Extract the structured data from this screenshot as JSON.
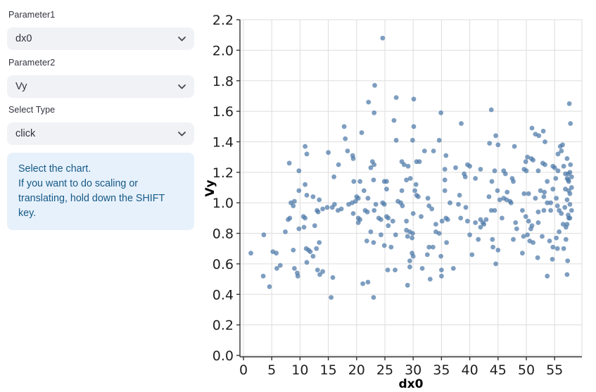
{
  "sidebar": {
    "param1": {
      "label": "Parameter1",
      "value": "dx0"
    },
    "param2": {
      "label": "Parameter2",
      "value": "Vy"
    },
    "select_type": {
      "label": "Select Type",
      "value": "click"
    },
    "info": {
      "line1": "Select the chart.",
      "line2": "If you want to do scaling or translating, hold down the SHIFT key."
    }
  },
  "colors": {
    "widget_bg": "#f0f2f6",
    "info_bg": "#e7f1fb",
    "info_text": "#155987",
    "point": "#4c78a8",
    "grid": "#dddddd",
    "axis": "#333333"
  },
  "chart_data": {
    "type": "scatter",
    "title": "",
    "xlabel": "dx0",
    "ylabel": "Vy",
    "xlim": [
      0,
      59.8
    ],
    "ylim": [
      0,
      2.2
    ],
    "x_ticks": [
      0,
      5,
      10,
      15,
      20,
      25,
      30,
      35,
      40,
      45,
      50,
      55
    ],
    "y_ticks": [
      0.0,
      0.2,
      0.4,
      0.6,
      0.8,
      1.0,
      1.2,
      1.4,
      1.6,
      1.8,
      2.0,
      2.2
    ],
    "grid": true,
    "legend": "none",
    "point_opacity": 0.72,
    "points": [
      [
        17.8,
        1.5
      ],
      [
        18.0,
        1.42
      ],
      [
        10.9,
        1.37
      ],
      [
        11.2,
        1.32
      ],
      [
        15.0,
        1.33
      ],
      [
        18.4,
        1.34
      ],
      [
        19.3,
        1.31
      ],
      [
        19.4,
        1.29
      ],
      [
        8.1,
        1.26
      ],
      [
        16.8,
        1.25
      ],
      [
        9.8,
        1.21
      ],
      [
        16.0,
        1.17
      ],
      [
        19.5,
        1.14
      ],
      [
        10.9,
        1.12
      ],
      [
        24.6,
        2.08
      ],
      [
        23.2,
        1.77
      ],
      [
        27.0,
        1.69
      ],
      [
        30.1,
        1.68
      ],
      [
        22.1,
        1.66
      ],
      [
        23.1,
        1.59
      ],
      [
        34.9,
        1.59
      ],
      [
        26.6,
        1.54
      ],
      [
        38.5,
        1.52
      ],
      [
        30.1,
        1.5
      ],
      [
        20.9,
        1.46
      ],
      [
        27.0,
        1.41
      ],
      [
        29.9,
        1.41
      ],
      [
        34.6,
        1.41
      ],
      [
        32.0,
        1.34
      ],
      [
        33.6,
        1.34
      ],
      [
        35.8,
        1.31
      ],
      [
        22.8,
        1.27
      ],
      [
        23.1,
        1.25
      ],
      [
        22.5,
        1.23
      ],
      [
        28.0,
        1.27
      ],
      [
        28.4,
        1.25
      ],
      [
        29.1,
        1.24
      ],
      [
        30.6,
        1.27
      ],
      [
        31.1,
        1.27
      ],
      [
        35.6,
        1.22
      ],
      [
        37.5,
        1.23
      ],
      [
        39.6,
        1.25
      ],
      [
        35.6,
        1.15
      ],
      [
        39.0,
        1.19
      ],
      [
        39.2,
        1.17
      ],
      [
        20.6,
        1.14
      ],
      [
        23.0,
        1.15
      ],
      [
        24.9,
        1.14
      ],
      [
        25.3,
        1.14
      ],
      [
        28.8,
        1.15
      ],
      [
        29.5,
        1.16
      ],
      [
        30.5,
        1.12
      ],
      [
        43.8,
        1.61
      ],
      [
        57.6,
        1.65
      ],
      [
        57.8,
        1.52
      ],
      [
        44.6,
        1.44
      ],
      [
        51.0,
        1.49
      ],
      [
        51.6,
        1.45
      ],
      [
        52.2,
        1.44
      ],
      [
        53.0,
        1.47
      ],
      [
        43.5,
        1.39
      ],
      [
        45.0,
        1.38
      ],
      [
        47.9,
        1.37
      ],
      [
        53.3,
        1.4
      ],
      [
        56.0,
        1.37
      ],
      [
        56.4,
        1.38
      ],
      [
        56.2,
        1.34
      ],
      [
        55.6,
        1.32
      ],
      [
        50.2,
        1.3
      ],
      [
        50.9,
        1.29
      ],
      [
        51.2,
        1.28
      ],
      [
        49.9,
        1.27
      ],
      [
        57.2,
        1.29
      ],
      [
        40.0,
        1.24
      ],
      [
        41.9,
        1.22
      ],
      [
        52.9,
        1.26
      ],
      [
        53.3,
        1.25
      ],
      [
        54.7,
        1.24
      ],
      [
        56.6,
        1.24
      ],
      [
        57.8,
        1.25
      ],
      [
        44.4,
        1.21
      ],
      [
        46.0,
        1.21
      ],
      [
        46.3,
        1.19
      ],
      [
        49.6,
        1.22
      ],
      [
        50.0,
        1.21
      ],
      [
        52.1,
        1.21
      ],
      [
        55.6,
        1.21
      ],
      [
        56.9,
        1.19
      ],
      [
        57.4,
        1.19
      ],
      [
        57.2,
        1.16
      ],
      [
        57.4,
        1.15
      ],
      [
        47.5,
        1.16
      ],
      [
        47.7,
        1.14
      ],
      [
        41.0,
        1.16
      ],
      [
        43.9,
        1.14
      ],
      [
        53.7,
        1.14
      ],
      [
        55.0,
        1.23
      ],
      [
        55.2,
        1.16
      ],
      [
        57.7,
        1.2
      ],
      [
        58.0,
        1.17
      ],
      [
        57.5,
        1.14
      ],
      [
        58.0,
        1.1
      ],
      [
        57.7,
        1.06
      ],
      [
        57.2,
        1.02
      ],
      [
        57.7,
        0.99
      ],
      [
        58.0,
        0.95
      ],
      [
        57.5,
        0.9
      ],
      [
        56.5,
        0.86
      ],
      [
        55.8,
        0.95
      ],
      [
        55.8,
        0.81
      ],
      [
        9.8,
        1.08
      ],
      [
        11.2,
        1.05
      ],
      [
        12.3,
        1.04
      ],
      [
        13.4,
        1.02
      ],
      [
        8.4,
        1.0
      ],
      [
        9.0,
        1.01
      ],
      [
        8.8,
        0.98
      ],
      [
        10.6,
        0.91
      ],
      [
        10.9,
        0.9
      ],
      [
        7.9,
        0.89
      ],
      [
        8.2,
        0.9
      ],
      [
        14.8,
        0.97
      ],
      [
        14.0,
        0.96
      ],
      [
        13.0,
        0.95
      ],
      [
        13.2,
        0.94
      ],
      [
        15.7,
        0.97
      ],
      [
        16.1,
        0.99
      ],
      [
        16.7,
        0.95
      ],
      [
        17.3,
        0.96
      ],
      [
        18.6,
        0.99
      ],
      [
        19.2,
        1.0
      ],
      [
        19.4,
        0.93
      ],
      [
        19.8,
        1.01
      ],
      [
        20.0,
        1.04
      ],
      [
        10.7,
        0.84
      ],
      [
        12.6,
        0.85
      ],
      [
        9.8,
        0.83
      ],
      [
        7.4,
        0.81
      ],
      [
        3.6,
        0.79
      ],
      [
        1.3,
        0.67
      ],
      [
        5.2,
        0.68
      ],
      [
        5.8,
        0.67
      ],
      [
        8.8,
        0.69
      ],
      [
        11.1,
        0.7
      ],
      [
        11.5,
        0.69
      ],
      [
        11.8,
        0.68
      ],
      [
        12.3,
        0.65
      ],
      [
        12.9,
        0.7
      ],
      [
        13.4,
        0.74
      ],
      [
        11.2,
        0.61
      ],
      [
        6.5,
        0.59
      ],
      [
        5.9,
        0.57
      ],
      [
        9.0,
        0.57
      ],
      [
        9.5,
        0.54
      ],
      [
        3.5,
        0.52
      ],
      [
        9.6,
        0.52
      ],
      [
        13.1,
        0.56
      ],
      [
        13.5,
        0.53
      ],
      [
        14.0,
        0.55
      ],
      [
        4.6,
        0.45
      ],
      [
        15.5,
        0.38
      ],
      [
        15.8,
        0.51
      ],
      [
        21.3,
        1.08
      ],
      [
        25.3,
        1.09
      ],
      [
        28.0,
        1.08
      ],
      [
        30.3,
        1.08
      ],
      [
        30.6,
        1.05
      ],
      [
        30.9,
        1.04
      ],
      [
        32.6,
        1.03
      ],
      [
        35.6,
        1.08
      ],
      [
        38.2,
        1.05
      ],
      [
        20.3,
        1.03
      ],
      [
        22.0,
        1.03
      ],
      [
        23.4,
        0.99
      ],
      [
        23.1,
        0.95
      ],
      [
        24.6,
        1.0
      ],
      [
        24.9,
        0.99
      ],
      [
        27.3,
        1.01
      ],
      [
        27.8,
        1.0
      ],
      [
        28.1,
        0.98
      ],
      [
        32.8,
        0.98
      ],
      [
        33.3,
        0.96
      ],
      [
        36.5,
        1.0
      ],
      [
        38.0,
        0.99
      ],
      [
        39.3,
        0.97
      ],
      [
        21.5,
        0.95
      ],
      [
        21.9,
        0.94
      ],
      [
        23.9,
        0.9
      ],
      [
        24.3,
        0.89
      ],
      [
        25.3,
        0.91
      ],
      [
        25.6,
        0.9
      ],
      [
        25.6,
        0.85
      ],
      [
        26.4,
        0.88
      ],
      [
        30.0,
        0.93
      ],
      [
        31.4,
        0.91
      ],
      [
        20.3,
        0.9
      ],
      [
        20.6,
        0.89
      ],
      [
        20.3,
        0.87
      ],
      [
        28.8,
        0.88
      ],
      [
        34.0,
        0.86
      ],
      [
        35.1,
        0.88
      ],
      [
        35.8,
        0.9
      ],
      [
        36.1,
        0.89
      ],
      [
        38.4,
        0.9
      ],
      [
        39.6,
        0.88
      ],
      [
        22.5,
        0.81
      ],
      [
        24.3,
        0.79
      ],
      [
        26.9,
        0.79
      ],
      [
        28.8,
        0.82
      ],
      [
        29.4,
        0.81
      ],
      [
        29.9,
        0.8
      ],
      [
        29.0,
        0.78
      ],
      [
        29.8,
        0.77
      ],
      [
        34.0,
        0.81
      ],
      [
        34.6,
        0.8
      ],
      [
        35.9,
        0.74
      ],
      [
        21.8,
        0.75
      ],
      [
        23.0,
        0.74
      ],
      [
        24.9,
        0.72
      ],
      [
        26.1,
        0.71
      ],
      [
        32.8,
        0.71
      ],
      [
        33.5,
        0.71
      ],
      [
        32.5,
        0.66
      ],
      [
        29.8,
        0.67
      ],
      [
        30.0,
        0.65
      ],
      [
        34.9,
        0.65
      ],
      [
        29.4,
        0.62
      ],
      [
        29.4,
        0.58
      ],
      [
        25.5,
        0.56
      ],
      [
        26.8,
        0.56
      ],
      [
        31.6,
        0.57
      ],
      [
        35.0,
        0.56
      ],
      [
        37.1,
        0.57
      ],
      [
        33.0,
        0.5
      ],
      [
        35.0,
        0.52
      ],
      [
        21.1,
        0.47
      ],
      [
        22.0,
        0.48
      ],
      [
        29.0,
        0.46
      ],
      [
        23.0,
        0.38
      ],
      [
        44.9,
        1.08
      ],
      [
        46.6,
        1.07
      ],
      [
        49.6,
        1.06
      ],
      [
        50.4,
        1.06
      ],
      [
        52.5,
        1.08
      ],
      [
        53.2,
        1.07
      ],
      [
        54.7,
        1.09
      ],
      [
        56.9,
        1.09
      ],
      [
        57.5,
        1.08
      ],
      [
        43.4,
        1.04
      ],
      [
        45.3,
        1.02
      ],
      [
        46.0,
        1.03
      ],
      [
        46.5,
        1.02
      ],
      [
        47.1,
        1.01
      ],
      [
        47.3,
        1.0
      ],
      [
        51.6,
        1.03
      ],
      [
        53.1,
        1.04
      ],
      [
        53.7,
        1.0
      ],
      [
        54.3,
        1.0
      ],
      [
        55.3,
        1.03
      ],
      [
        55.5,
        0.98
      ],
      [
        56.8,
        0.97
      ],
      [
        43.8,
        0.95
      ],
      [
        44.4,
        0.95
      ],
      [
        45.7,
        0.9
      ],
      [
        49.3,
        0.95
      ],
      [
        49.9,
        0.91
      ],
      [
        52.1,
        0.94
      ],
      [
        53.1,
        0.95
      ],
      [
        54.3,
        0.95
      ],
      [
        56.2,
        0.93
      ],
      [
        57.4,
        0.92
      ],
      [
        57.7,
        0.9
      ],
      [
        41.0,
        0.87
      ],
      [
        41.9,
        0.89
      ],
      [
        42.3,
        0.87
      ],
      [
        42.5,
        0.86
      ],
      [
        42.9,
        0.89
      ],
      [
        41.9,
        0.84
      ],
      [
        48.1,
        0.87
      ],
      [
        50.4,
        0.88
      ],
      [
        51.0,
        0.85
      ],
      [
        52.1,
        0.87
      ],
      [
        48.3,
        0.83
      ],
      [
        50.8,
        0.83
      ],
      [
        57.0,
        0.84
      ],
      [
        57.2,
        0.86
      ],
      [
        40.0,
        0.79
      ],
      [
        41.5,
        0.76
      ],
      [
        44.0,
        0.76
      ],
      [
        47.7,
        0.76
      ],
      [
        49.5,
        0.78
      ],
      [
        50.2,
        0.79
      ],
      [
        50.6,
        0.75
      ],
      [
        51.2,
        0.74
      ],
      [
        52.8,
        0.78
      ],
      [
        54.1,
        0.75
      ],
      [
        55.3,
        0.77
      ],
      [
        57.0,
        0.76
      ],
      [
        40.4,
        0.66
      ],
      [
        44.1,
        0.71
      ],
      [
        45.0,
        0.69
      ],
      [
        49.3,
        0.67
      ],
      [
        54.7,
        0.71
      ],
      [
        55.5,
        0.7
      ],
      [
        56.6,
        0.7
      ],
      [
        52.0,
        0.64
      ],
      [
        54.6,
        0.63
      ],
      [
        57.3,
        0.62
      ],
      [
        44.6,
        0.6
      ],
      [
        53.7,
        0.52
      ],
      [
        57.2,
        0.53
      ]
    ]
  }
}
